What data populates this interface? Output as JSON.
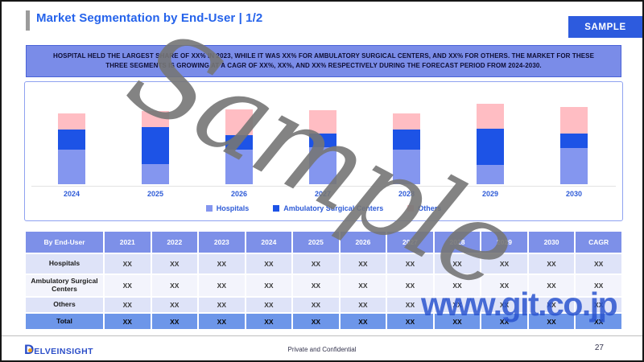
{
  "header": {
    "title": "Market Segmentation by End-User | 1/2",
    "sample_button": "SAMPLE"
  },
  "summary": {
    "text": "HOSPITAL HELD THE LARGEST SHARE OF XX% IN 2023, WHILE IT WAS XX% FOR AMBULATORY SURGICAL CENTERS, AND XX% FOR OTHERS. THE MARKET FOR THESE THREE SEGMENTS IS GROWING AT A CAGR OF XX%, XX%, AND XX% RESPECTIVELY DURING THE FORECAST PERIOD FROM 2024-2030."
  },
  "chart_data": {
    "type": "bar",
    "stacked": true,
    "title": "",
    "xlabel": "",
    "ylabel": "",
    "grid": false,
    "axis_values_shown": false,
    "legend_position": "bottom",
    "categories": [
      "2024",
      "2025",
      "2026",
      "2027",
      "2028",
      "2029",
      "2030"
    ],
    "ylim": [
      0,
      100
    ],
    "series": [
      {
        "name": "Hospitals",
        "color": "#8496ef",
        "values": [
          43,
          25,
          43,
          46,
          43,
          24,
          45
        ]
      },
      {
        "name": "Ambulatory Surgical Centers",
        "color": "#1d53e6",
        "values": [
          25,
          46,
          18,
          17,
          25,
          45,
          18
        ]
      },
      {
        "name": "Others",
        "color": "#ffbdc3",
        "values": [
          20,
          20,
          32,
          29,
          20,
          31,
          33
        ]
      }
    ]
  },
  "table": {
    "header": [
      "By End-User",
      "2021",
      "2022",
      "2023",
      "2024",
      "2025",
      "2026",
      "2027",
      "2028",
      "2029",
      "2030",
      "CAGR"
    ],
    "rows": [
      {
        "label": "Hospitals",
        "values": [
          "XX",
          "XX",
          "XX",
          "XX",
          "XX",
          "XX",
          "XX",
          "XX",
          "XX",
          "XX",
          "XX"
        ],
        "style": "row-alt h26"
      },
      {
        "label": "Ambulatory Surgical Centers",
        "values": [
          "XX",
          "XX",
          "XX",
          "XX",
          "XX",
          "XX",
          "XX",
          "XX",
          "XX",
          "XX",
          "XX"
        ],
        "style": "row-plain h28"
      },
      {
        "label": "Others",
        "values": [
          "XX",
          "XX",
          "XX",
          "XX",
          "XX",
          "XX",
          "XX",
          "XX",
          "XX",
          "XX",
          "XX"
        ],
        "style": "row-alt h20"
      },
      {
        "label": "Total",
        "values": [
          "XX",
          "XX",
          "XX",
          "XX",
          "XX",
          "XX",
          "XX",
          "XX",
          "XX",
          "XX",
          "XX"
        ],
        "style": "row-total h21"
      }
    ]
  },
  "watermarks": {
    "diagonal": "Sample",
    "site": "www.git.co.jp"
  },
  "footer": {
    "logo": {
      "first": "D",
      "rest": "ELVEINSIGHT"
    },
    "confidential": "Private and Confidential",
    "page": "27"
  },
  "colors": {
    "accent_blue": "#2563eb",
    "banner_bg": "#7a8ce8",
    "table_header_bg": "#7d90e8",
    "table_total_bg": "#6d96e9",
    "hospitals_bar": "#8496ef",
    "asc_bar": "#1d53e6",
    "others_bar": "#ffbdc3"
  }
}
